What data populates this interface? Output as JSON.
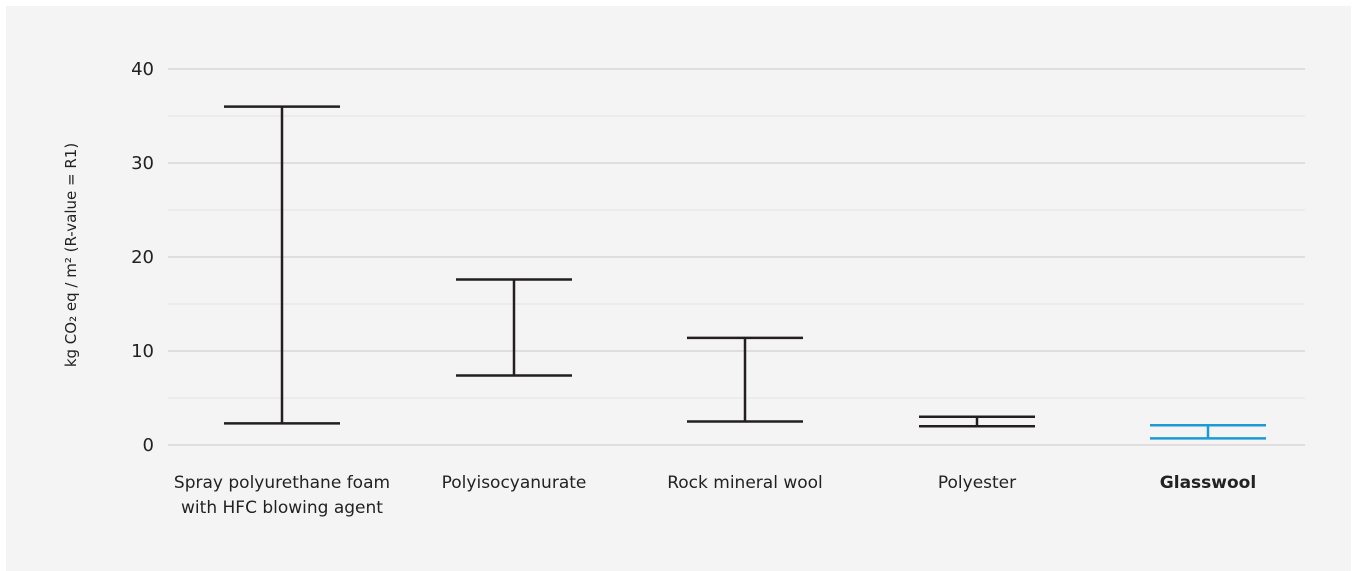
{
  "chart_data": {
    "type": "range",
    "title": "",
    "ylabel": "kg CO₂ eq / m² (R-value = R1)",
    "xlabel": "",
    "ylim": [
      0,
      40
    ],
    "yticks": [
      0,
      10,
      20,
      30,
      40
    ],
    "grid": true,
    "categories": [
      {
        "lines": [
          "Spray polyurethane foam",
          "with HFC blowing agent"
        ],
        "min": 2.3,
        "max": 36.0,
        "color": "#231f20",
        "bold": false
      },
      {
        "lines": [
          "Polyisocyanurate"
        ],
        "min": 7.4,
        "max": 17.6,
        "color": "#231f20",
        "bold": false
      },
      {
        "lines": [
          "Rock mineral wool"
        ],
        "min": 2.5,
        "max": 11.4,
        "color": "#231f20",
        "bold": false
      },
      {
        "lines": [
          "Polyester"
        ],
        "min": 2.0,
        "max": 3.0,
        "color": "#231f20",
        "bold": false
      },
      {
        "lines": [
          "Glasswool"
        ],
        "min": 0.7,
        "max": 2.1,
        "color": "#1a9bd7",
        "bold": true
      }
    ]
  }
}
